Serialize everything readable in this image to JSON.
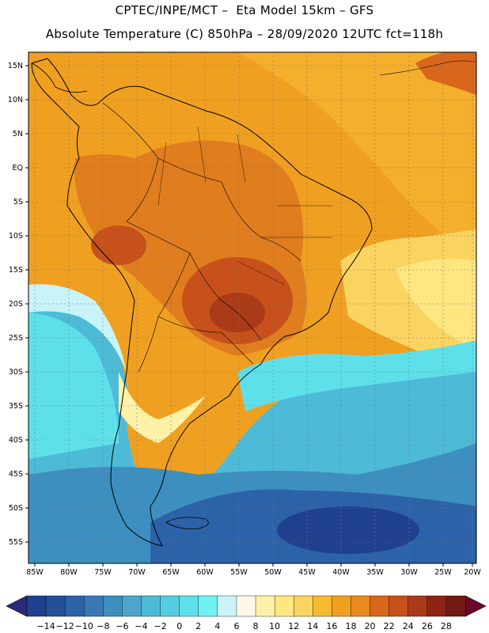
{
  "header": {
    "line1": "CPTEC/INPE/MCT –  Eta Model 15km – GFS",
    "line2": "Absolute Temperature (C) 850hPa – 28/09/2020 12UTC fct=118h"
  },
  "map": {
    "region": "South America",
    "variable": "Absolute Temperature (C) 850hPa",
    "lat_labels": [
      "15N",
      "10N",
      "5N",
      "EQ",
      "5S",
      "10S",
      "15S",
      "20S",
      "25S",
      "30S",
      "35S",
      "40S",
      "45S",
      "50S",
      "55S"
    ],
    "lon_labels": [
      "85W",
      "80W",
      "75W",
      "70W",
      "65W",
      "60W",
      "55W",
      "50W",
      "45W",
      "40W",
      "35W",
      "30W",
      "25W",
      "20W"
    ]
  },
  "colorbar": {
    "labels": [
      "-14",
      "-12",
      "-10",
      "-8",
      "-6",
      "-4",
      "-2",
      "0",
      "2",
      "4",
      "6",
      "8",
      "10",
      "12",
      "14",
      "16",
      "18",
      "20",
      "22",
      "24",
      "26",
      "28"
    ],
    "colors": [
      "#1f3f8f",
      "#24509a",
      "#2c62a8",
      "#3a78b5",
      "#3d8fbf",
      "#4ca6cc",
      "#4dbbd7",
      "#55cde0",
      "#5ee0ea",
      "#70f2f2",
      "#c8f4f8",
      "#fff8e6",
      "#fff2a8",
      "#ffe680",
      "#fad460",
      "#f5bb30",
      "#f0a020",
      "#e88a1e",
      "#d9661a",
      "#c8501a",
      "#aa3a18",
      "#8c2414",
      "#741a14"
    ],
    "low_arrow_color": "#2a2a7a",
    "high_arrow_color": "#6b0a28"
  }
}
